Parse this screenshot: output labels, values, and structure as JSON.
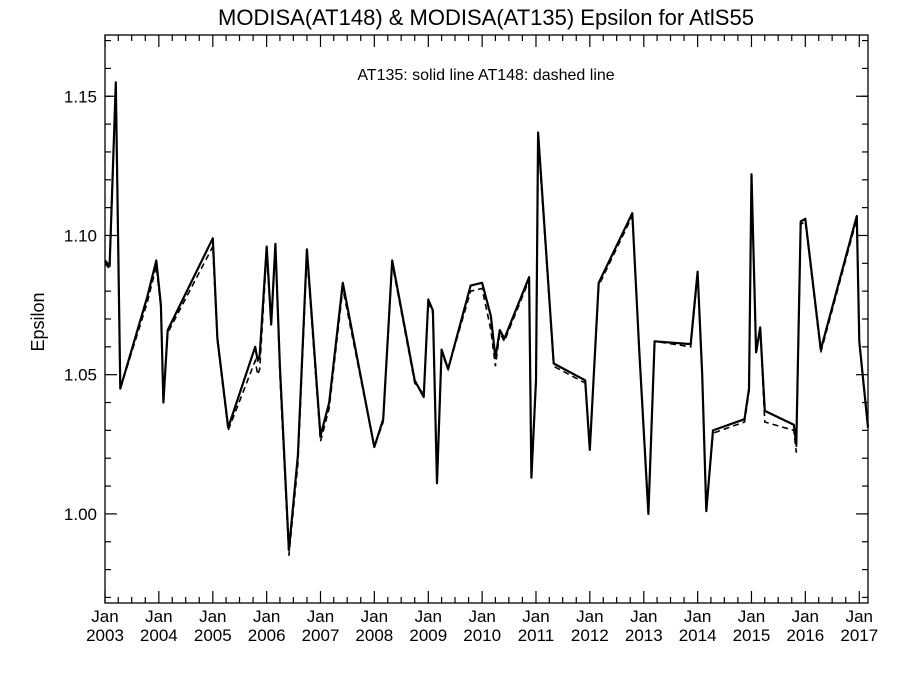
{
  "chart_data": {
    "type": "line",
    "title": "MODISA(AT148) & MODISA(AT135)  Epsilon for AtlS55",
    "annotation": "AT135: solid line   AT148: dashed line",
    "xlabel": "",
    "ylabel": "Epsilon",
    "xlim": [
      "2003-01-01",
      "2017-03-01"
    ],
    "ylim": [
      0.968,
      1.172
    ],
    "yticks": [
      1.0,
      1.05,
      1.1,
      1.15
    ],
    "ytick_labels": [
      "1.00",
      "1.05",
      "1.10",
      "1.15"
    ],
    "xticks": [
      {
        "month": "Jan",
        "year": "2003"
      },
      {
        "month": "Jan",
        "year": "2004"
      },
      {
        "month": "Jan",
        "year": "2005"
      },
      {
        "month": "Jan",
        "year": "2006"
      },
      {
        "month": "Jan",
        "year": "2007"
      },
      {
        "month": "Jan",
        "year": "2008"
      },
      {
        "month": "Jan",
        "year": "2009"
      },
      {
        "month": "Jan",
        "year": "2010"
      },
      {
        "month": "Jan",
        "year": "2011"
      },
      {
        "month": "Jan",
        "year": "2012"
      },
      {
        "month": "Jan",
        "year": "2013"
      },
      {
        "month": "Jan",
        "year": "2014"
      },
      {
        "month": "Jan",
        "year": "2015"
      },
      {
        "month": "Jan",
        "year": "2016"
      },
      {
        "month": "Jan",
        "year": "2017"
      }
    ],
    "grid": false,
    "series": [
      {
        "name": "AT135",
        "style": "solid",
        "color": "#000000",
        "x": [
          "2003-01-01",
          "2003-02-01",
          "2003-03-15",
          "2003-04-15",
          "2003-10-15",
          "2003-12-15",
          "2004-01-15",
          "2004-02-01",
          "2004-03-01",
          "2005-01-01",
          "2005-02-01",
          "2005-04-15",
          "2005-10-15",
          "2005-11-01",
          "2005-11-15",
          "2006-01-01",
          "2006-02-01",
          "2006-03-01",
          "2006-04-01",
          "2006-06-01",
          "2006-08-01",
          "2006-10-01",
          "2007-01-01",
          "2007-03-01",
          "2007-06-01",
          "2008-01-01",
          "2008-03-01",
          "2008-05-01",
          "2008-10-01",
          "2008-12-01",
          "2009-01-01",
          "2009-02-01",
          "2009-03-01",
          "2009-04-01",
          "2009-05-15",
          "2009-10-15",
          "2010-01-01",
          "2010-03-01",
          "2010-04-01",
          "2010-05-01",
          "2010-06-01",
          "2010-11-15",
          "2010-12-01",
          "2011-01-01",
          "2011-01-15",
          "2011-05-01",
          "2011-12-01",
          "2012-01-01",
          "2012-03-01",
          "2012-10-15",
          "2012-12-01",
          "2013-02-01",
          "2013-03-15",
          "2013-11-15",
          "2014-01-01",
          "2014-02-01",
          "2014-03-01",
          "2014-04-15",
          "2014-11-15",
          "2014-12-15",
          "2015-01-01",
          "2015-02-01",
          "2015-03-01",
          "2015-04-01",
          "2015-10-15",
          "2015-11-01",
          "2015-12-01",
          "2016-01-01",
          "2016-04-15",
          "2016-12-15",
          "2017-01-01",
          "2017-03-01"
        ],
        "values": [
          1.091,
          1.089,
          1.155,
          1.045,
          1.078,
          1.091,
          1.075,
          1.04,
          1.066,
          1.099,
          1.063,
          1.031,
          1.06,
          1.055,
          1.057,
          1.096,
          1.068,
          1.097,
          1.053,
          0.987,
          1.021,
          1.095,
          1.028,
          1.04,
          1.083,
          1.024,
          1.034,
          1.091,
          1.048,
          1.042,
          1.077,
          1.073,
          1.011,
          1.059,
          1.052,
          1.082,
          1.083,
          1.071,
          1.056,
          1.066,
          1.063,
          1.085,
          1.013,
          1.048,
          1.137,
          1.054,
          1.048,
          1.023,
          1.083,
          1.108,
          1.059,
          1.0,
          1.062,
          1.061,
          1.087,
          1.05,
          1.001,
          1.03,
          1.034,
          1.045,
          1.122,
          1.058,
          1.067,
          1.037,
          1.032,
          1.025,
          1.105,
          1.106,
          1.059,
          1.107,
          1.062,
          1.031
        ]
      },
      {
        "name": "AT148",
        "style": "dashed",
        "color": "#000000",
        "x": [
          "2003-01-01",
          "2003-02-01",
          "2003-03-15",
          "2003-04-15",
          "2003-10-15",
          "2003-12-15",
          "2004-01-15",
          "2004-02-01",
          "2004-03-01",
          "2005-01-01",
          "2005-02-01",
          "2005-04-15",
          "2005-10-15",
          "2005-11-01",
          "2005-11-15",
          "2006-01-01",
          "2006-02-01",
          "2006-03-01",
          "2006-04-01",
          "2006-06-01",
          "2006-08-01",
          "2006-10-01",
          "2007-01-01",
          "2007-03-01",
          "2007-06-01",
          "2008-01-01",
          "2008-03-01",
          "2008-05-01",
          "2008-10-01",
          "2008-12-01",
          "2009-01-01",
          "2009-02-01",
          "2009-03-01",
          "2009-04-01",
          "2009-05-15",
          "2009-10-15",
          "2010-01-01",
          "2010-03-01",
          "2010-04-01",
          "2010-05-01",
          "2010-06-01",
          "2010-11-15",
          "2010-12-01",
          "2011-01-01",
          "2011-01-15",
          "2011-05-01",
          "2011-12-01",
          "2012-01-01",
          "2012-03-01",
          "2012-10-15",
          "2012-12-01",
          "2013-02-01",
          "2013-03-15",
          "2013-11-15",
          "2014-01-01",
          "2014-02-01",
          "2014-03-01",
          "2014-04-15",
          "2014-11-15",
          "2014-12-15",
          "2015-01-01",
          "2015-02-01",
          "2015-03-01",
          "2015-04-01",
          "2015-10-15",
          "2015-11-01",
          "2015-12-01",
          "2016-01-01",
          "2016-04-15",
          "2016-12-15",
          "2017-01-01",
          "2017-03-01"
        ],
        "values": [
          1.09,
          1.088,
          1.153,
          1.045,
          1.076,
          1.089,
          1.074,
          1.041,
          1.065,
          1.096,
          1.062,
          1.03,
          1.055,
          1.05,
          1.052,
          1.094,
          1.068,
          1.096,
          1.05,
          0.985,
          1.018,
          1.093,
          1.026,
          1.038,
          1.081,
          1.024,
          1.033,
          1.09,
          1.047,
          1.043,
          1.076,
          1.072,
          1.011,
          1.058,
          1.052,
          1.08,
          1.081,
          1.066,
          1.053,
          1.065,
          1.062,
          1.084,
          1.013,
          1.047,
          1.135,
          1.053,
          1.047,
          1.023,
          1.082,
          1.107,
          1.059,
          1.0,
          1.062,
          1.06,
          1.086,
          1.05,
          1.001,
          1.029,
          1.033,
          1.044,
          1.12,
          1.058,
          1.066,
          1.033,
          1.03,
          1.022,
          1.104,
          1.105,
          1.058,
          1.106,
          1.061,
          1.031
        ]
      }
    ]
  }
}
